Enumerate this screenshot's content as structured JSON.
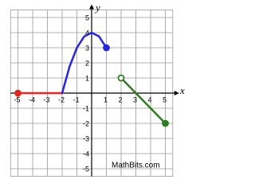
{
  "chart_data": {
    "type": "line",
    "x_label": "x",
    "y_label": "y",
    "source": "MathBits.com",
    "xlim": [
      -5.5,
      5.5
    ],
    "ylim": [
      -5.5,
      5.5
    ],
    "xticks": [
      -5,
      -4,
      -3,
      -2,
      -1,
      1,
      2,
      3,
      4,
      5
    ],
    "yticks": [
      -5,
      -4,
      -3,
      -2,
      -1,
      1,
      2,
      3,
      4,
      5
    ],
    "grid": true,
    "series": [
      {
        "color": "#e8251f",
        "x": [
          -5,
          -2
        ],
        "values": [
          0,
          0
        ],
        "start_marker": "closed",
        "end_marker": "none"
      },
      {
        "color": "#2626e0",
        "x": [
          -2,
          -1.5,
          -1,
          -0.5,
          0,
          0.5,
          1
        ],
        "values": [
          0,
          1.75,
          3,
          3.75,
          4,
          3.75,
          3
        ],
        "start_marker": "none",
        "end_marker": "closed"
      },
      {
        "color": "#2e7d1f",
        "x": [
          2,
          5
        ],
        "values": [
          1,
          -2
        ],
        "start_marker": "open",
        "end_marker": "closed"
      }
    ]
  }
}
